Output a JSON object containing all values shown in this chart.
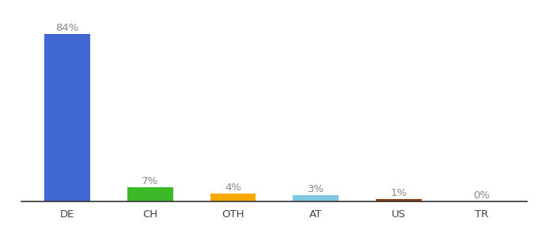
{
  "categories": [
    "DE",
    "CH",
    "OTH",
    "AT",
    "US",
    "TR"
  ],
  "values": [
    84,
    7,
    4,
    3,
    1,
    0
  ],
  "labels": [
    "84%",
    "7%",
    "4%",
    "3%",
    "1%",
    "0%"
  ],
  "bar_colors": [
    "#4169d4",
    "#3cb828",
    "#f5a800",
    "#7ec8e3",
    "#8b3a0f",
    "#c0392b"
  ],
  "ylim": [
    0,
    95
  ],
  "background_color": "#ffffff",
  "label_fontsize": 9.5,
  "tick_fontsize": 9.5,
  "label_color": "#888888"
}
